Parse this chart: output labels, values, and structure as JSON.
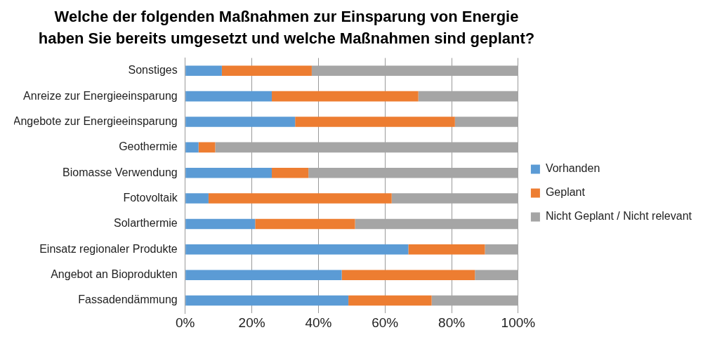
{
  "chart_data": {
    "type": "bar",
    "orientation": "horizontal",
    "stacked": true,
    "title": "Welche der folgenden Maßnahmen zur Einsparung von Energie haben Sie bereits umgesetzt und welche Maßnahmen sind geplant?",
    "categories": [
      "Sonstiges",
      "Anreize zur Energieeinsparung",
      "Angebote zur Energieeinsparung",
      "Geothermie",
      "Biomasse Verwendung",
      "Fotovoltaik",
      "Solarthermie",
      "Einsatz regionaler Produkte",
      "Angebot an Bioprodukten",
      "Fassadendämmung"
    ],
    "series": [
      {
        "name": "Vorhanden",
        "color": "#5b9bd5",
        "values": [
          11,
          26,
          33,
          4,
          26,
          7,
          21,
          67,
          47,
          49
        ]
      },
      {
        "name": "Geplant",
        "color": "#ed7d31",
        "values": [
          27,
          44,
          48,
          5,
          11,
          55,
          30,
          23,
          40,
          25
        ]
      },
      {
        "name": "Nicht Geplant / Nicht relevant",
        "color": "#a5a5a5",
        "values": [
          62,
          30,
          19,
          91,
          63,
          38,
          49,
          10,
          13,
          26
        ]
      }
    ],
    "xlim": [
      0,
      100
    ],
    "xticks": [
      {
        "value": 0,
        "label": "0%"
      },
      {
        "value": 20,
        "label": "20%"
      },
      {
        "value": 40,
        "label": "40%"
      },
      {
        "value": 60,
        "label": "60%"
      },
      {
        "value": 80,
        "label": "80%"
      },
      {
        "value": 100,
        "label": "100%"
      }
    ],
    "grid": "x",
    "legend": "right"
  }
}
